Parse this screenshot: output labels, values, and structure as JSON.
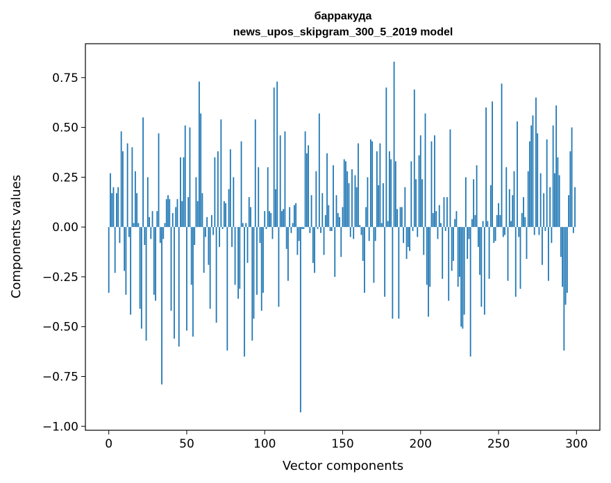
{
  "chart_data": {
    "type": "bar",
    "title": "барракуда",
    "subtitle": "news_upos_skipgram_300_5_2019 model",
    "xlabel": "Vector components",
    "ylabel": "Components values",
    "xlim": [
      -15,
      315
    ],
    "ylim": [
      -1.02,
      0.92
    ],
    "xticks": [
      0,
      50,
      100,
      150,
      200,
      250,
      300
    ],
    "yticks": [
      0.75,
      0.5,
      0.25,
      0.0,
      -0.25,
      -0.5,
      -0.75,
      -1.0
    ],
    "ytick_labels": [
      "0.75",
      "0.50",
      "0.25",
      "0.00",
      "−0.25",
      "−0.50",
      "−0.75",
      "−1.00"
    ],
    "grid": false,
    "bar_color": "#1f77b4",
    "values": [
      -0.33,
      0.27,
      0.17,
      0.2,
      -0.23,
      0.17,
      0.2,
      -0.08,
      0.48,
      0.38,
      -0.22,
      -0.34,
      0.42,
      -0.05,
      -0.44,
      0.4,
      0.02,
      0.28,
      0.17,
      0.02,
      -0.41,
      -0.51,
      0.55,
      -0.09,
      -0.57,
      0.25,
      0.05,
      -0.06,
      0.08,
      -0.34,
      -0.37,
      0.08,
      0.47,
      -0.08,
      -0.79,
      -0.06,
      0.02,
      0.14,
      0.16,
      0.14,
      -0.42,
      0.07,
      -0.56,
      0.1,
      0.14,
      -0.6,
      0.35,
      0.13,
      0.35,
      0.51,
      -0.52,
      0.15,
      0.5,
      -0.29,
      -0.55,
      -0.09,
      0.25,
      0.13,
      0.73,
      0.57,
      0.17,
      -0.23,
      -0.05,
      0.05,
      -0.19,
      -0.41,
      0.06,
      -0.04,
      0.35,
      -0.48,
      0.38,
      -0.1,
      0.54,
      -0.01,
      0.13,
      0.12,
      -0.62,
      0.19,
      0.39,
      -0.1,
      0.25,
      -0.29,
      0.0,
      -0.36,
      -0.31,
      0.43,
      0.02,
      -0.65,
      0.02,
      -0.18,
      0.15,
      0.1,
      -0.57,
      -0.46,
      0.54,
      -0.34,
      0.3,
      -0.08,
      -0.42,
      -0.33,
      0.08,
      -0.01,
      0.3,
      0.08,
      0.07,
      -0.06,
      0.7,
      0.19,
      0.73,
      -0.4,
      0.46,
      0.08,
      0.09,
      0.48,
      -0.11,
      -0.27,
      0.1,
      -0.03,
      0.02,
      0.11,
      0.12,
      -0.14,
      -0.07,
      -0.93,
      -0.01,
      -0.01,
      0.48,
      0.37,
      0.41,
      -0.03,
      0.16,
      -0.18,
      -0.23,
      0.28,
      -0.01,
      0.57,
      -0.03,
      0.17,
      -0.14,
      0.06,
      0.37,
      0.11,
      -0.02,
      -0.02,
      0.31,
      -0.25,
      0.16,
      0.07,
      0.05,
      -0.15,
      0.1,
      0.34,
      0.33,
      0.28,
      0.22,
      -0.05,
      0.29,
      -0.06,
      0.26,
      0.2,
      0.42,
      0.01,
      -0.04,
      -0.17,
      -0.33,
      0.1,
      0.25,
      -0.07,
      0.44,
      0.43,
      -0.28,
      -0.07,
      0.38,
      0.21,
      0.42,
      0.02,
      0.22,
      -0.35,
      0.7,
      0.03,
      0.38,
      0.34,
      -0.46,
      0.83,
      0.33,
      0.09,
      -0.46,
      0.1,
      0.1,
      -0.08,
      0.2,
      -0.16,
      -0.1,
      -0.12,
      0.33,
      -0.02,
      0.69,
      0.24,
      -0.05,
      0.36,
      0.46,
      0.24,
      -0.14,
      0.57,
      -0.29,
      -0.45,
      -0.3,
      0.43,
      0.07,
      0.46,
      0.08,
      -0.06,
      0.11,
      0.02,
      -0.26,
      0.15,
      -0.02,
      0.15,
      -0.37,
      0.49,
      -0.22,
      -0.17,
      0.04,
      0.08,
      -0.3,
      -0.25,
      -0.5,
      -0.51,
      -0.44,
      0.25,
      -0.16,
      -0.06,
      -0.65,
      0.04,
      0.24,
      0.06,
      0.31,
      -0.1,
      -0.24,
      -0.4,
      0.03,
      -0.44,
      0.6,
      0.03,
      -0.26,
      0.21,
      0.63,
      -0.08,
      -0.07,
      0.06,
      0.12,
      0.06,
      0.72,
      -0.05,
      -0.04,
      0.3,
      -0.27,
      0.19,
      0.03,
      0.16,
      0.28,
      -0.35,
      0.53,
      -0.05,
      -0.31,
      0.07,
      0.15,
      0.05,
      -0.16,
      0.28,
      0.43,
      0.51,
      0.56,
      -0.04,
      0.65,
      0.47,
      -0.04,
      0.27,
      -0.19,
      0.17,
      -0.02,
      0.44,
      -0.27,
      0.2,
      -0.08,
      0.51,
      0.27,
      0.61,
      0.35,
      0.26,
      -0.15,
      -0.3,
      -0.62,
      -0.39,
      -0.33,
      0.16,
      0.38,
      0.5,
      -0.03,
      0.2
    ]
  }
}
